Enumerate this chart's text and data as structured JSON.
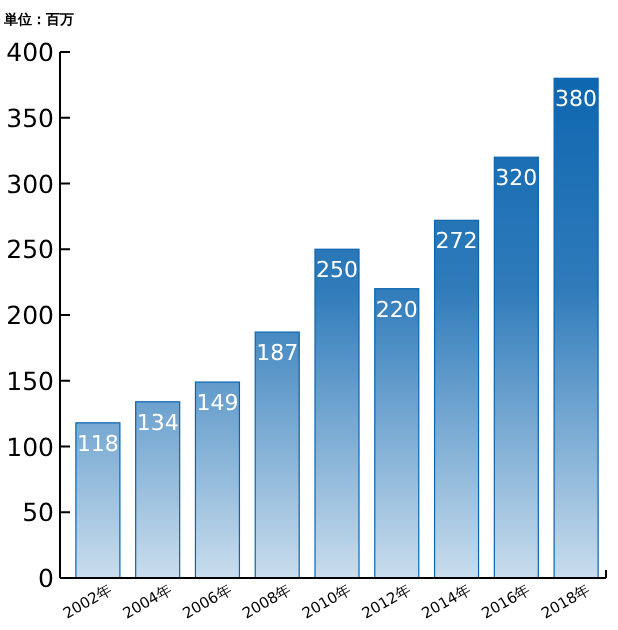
{
  "chart_data": {
    "type": "bar",
    "title": "単位：百万",
    "categories": [
      "2002年",
      "2004年",
      "2006年",
      "2008年",
      "2010年",
      "2012年",
      "2014年",
      "2016年",
      "2018年"
    ],
    "values": [
      118,
      134,
      149,
      187,
      250,
      220,
      272,
      320,
      380
    ],
    "color": "#0a64ae",
    "ylim": [
      0,
      400
    ],
    "yticks": [
      0,
      50,
      100,
      150,
      200,
      250,
      300,
      350,
      400
    ],
    "data_labels": true,
    "grid": false
  }
}
